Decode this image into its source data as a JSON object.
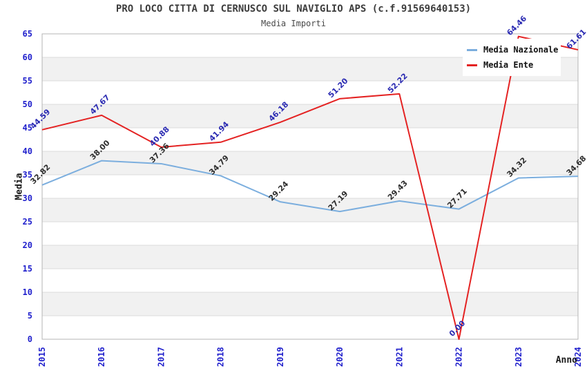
{
  "header": {
    "title": "PRO LOCO CITTA DI CERNUSCO SUL NAVIGLIO APS (c.f.91569640153)",
    "subtitle": "Media Importi"
  },
  "chart_data": {
    "type": "line",
    "title": "PRO LOCO CITTA DI CERNUSCO SUL NAVIGLIO APS (c.f.91569640153)",
    "subtitle": "Media Importi",
    "x": [
      "2015",
      "2016",
      "2017",
      "2018",
      "2019",
      "2020",
      "2021",
      "2022",
      "2023",
      "2024"
    ],
    "series": [
      {
        "name": "Media Nazionale",
        "color": "#7BAEDE",
        "label_color": "#2e2e2e",
        "values": [
          32.82,
          38.0,
          37.36,
          34.79,
          29.24,
          27.19,
          29.43,
          27.71,
          34.32,
          34.68
        ]
      },
      {
        "name": "Media Ente",
        "color": "#E42222",
        "label_color": "#2a2ab2",
        "values": [
          44.59,
          47.67,
          40.88,
          41.94,
          46.18,
          51.2,
          52.22,
          0.0,
          64.46,
          61.61
        ]
      }
    ],
    "xlabel": "Anno",
    "ylabel": "Media",
    "ylim": [
      0,
      65
    ],
    "ytick_step": 5,
    "grid": "horizontal",
    "band_fill": "alternating white / light gray",
    "legend_position": "top-right",
    "value_labels": "each point labeled with value, rotated 45deg"
  },
  "colors": {
    "tick_labels": "#1f1fcc",
    "band_gray": "#f1f1f1",
    "gridline": "#dcdcdc",
    "plot_border": "#b4b4b4",
    "background": "#ffffff"
  }
}
